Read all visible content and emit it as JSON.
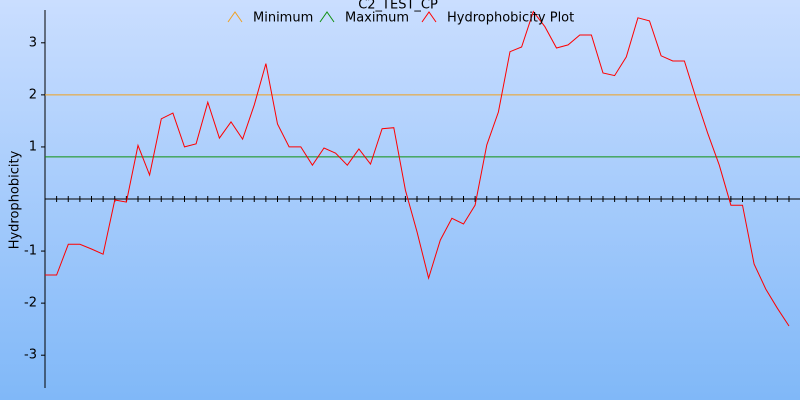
{
  "chart_data": {
    "type": "line",
    "title": "C2_TEST_CP",
    "y_label": "Hydrophobicity",
    "ylim": [
      -3.63,
      3.63
    ],
    "yticks": [
      -3,
      -2,
      -1,
      1,
      2,
      3
    ],
    "series": [
      {
        "name": "Minimum",
        "color": "#f0a020",
        "value": 2.0
      },
      {
        "name": "Maximum",
        "color": "#109010",
        "value": 0.81
      },
      {
        "name": "Hydrophobicity Plot",
        "color": "#ff0000",
        "values": [
          -1.46,
          -1.46,
          -0.87,
          -0.87,
          -0.96,
          -1.06,
          -0.02,
          -0.06,
          1.03,
          0.46,
          1.54,
          1.65,
          1.0,
          1.06,
          1.86,
          1.17,
          1.48,
          1.15,
          1.81,
          2.6,
          1.44,
          1.0,
          1.0,
          0.65,
          0.98,
          0.88,
          0.65,
          0.96,
          0.67,
          1.35,
          1.37,
          0.17,
          -0.63,
          -1.52,
          -0.79,
          -0.37,
          -0.48,
          -0.12,
          1.04,
          1.67,
          2.83,
          2.92,
          3.6,
          3.31,
          2.9,
          2.96,
          3.15,
          3.15,
          2.42,
          2.37,
          2.73,
          3.48,
          3.42,
          2.75,
          2.65,
          2.65,
          1.94,
          1.27,
          0.65,
          -0.12,
          -0.12,
          -1.25,
          -1.73,
          -2.1,
          -2.44
        ]
      }
    ]
  }
}
